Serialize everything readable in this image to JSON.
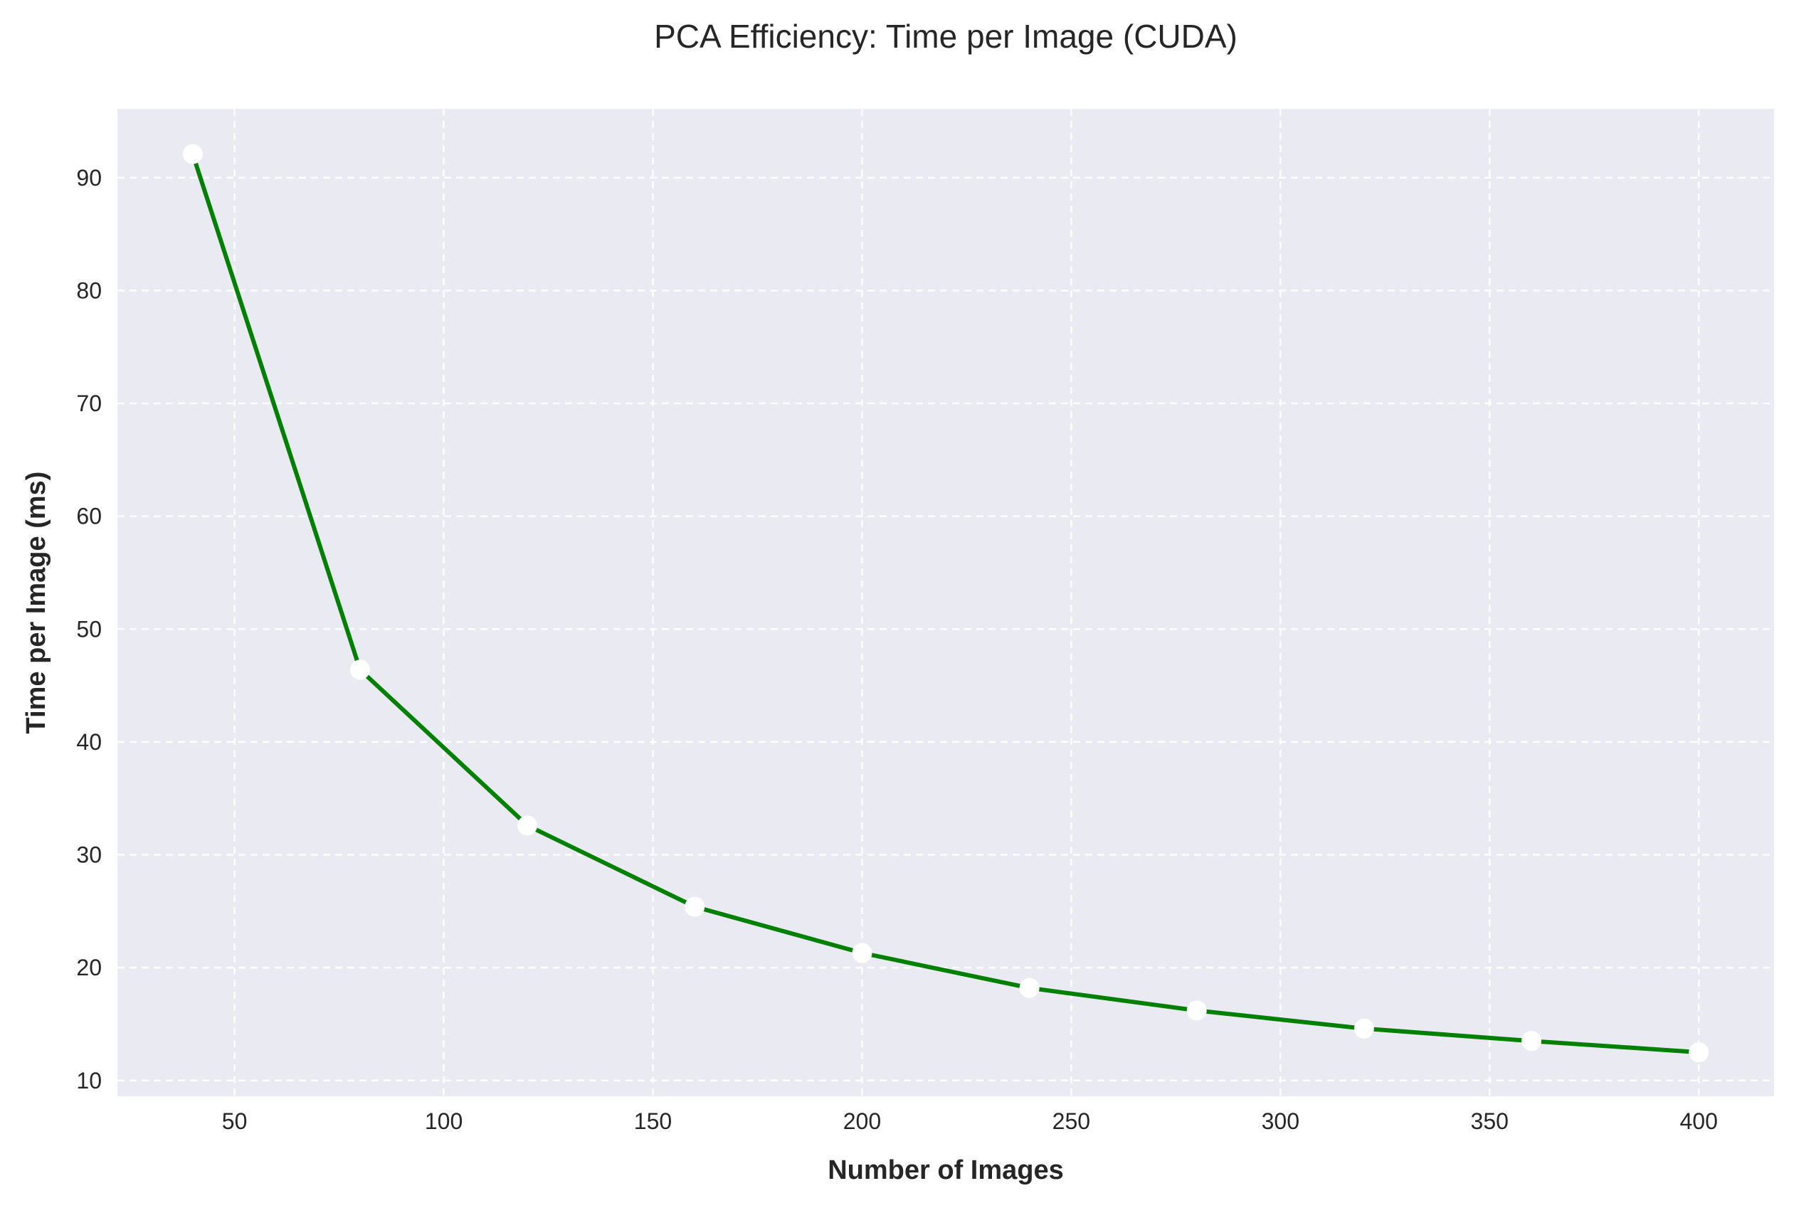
{
  "chart_data": {
    "type": "line",
    "title": "PCA Efficiency: Time per Image (CUDA)",
    "xlabel": "Number of Images",
    "ylabel": "Time per Image (ms)",
    "xlim": [
      22,
      418
    ],
    "ylim": [
      8.6,
      96.1
    ],
    "xticks": [
      50,
      100,
      150,
      200,
      250,
      300,
      350,
      400
    ],
    "yticks": [
      10,
      20,
      30,
      40,
      50,
      60,
      70,
      80,
      90
    ],
    "grid": true,
    "legend": "none",
    "series": [
      {
        "color": "#008000",
        "marker_color": "#ffffff",
        "x": [
          40,
          80,
          120,
          160,
          200,
          240,
          280,
          320,
          360,
          400
        ],
        "y": [
          92.1,
          46.4,
          32.6,
          25.4,
          21.3,
          18.2,
          16.2,
          14.6,
          13.5,
          12.5
        ]
      }
    ]
  },
  "style": {
    "plot_background": "#eaeaf2",
    "text_color": "#262626"
  }
}
